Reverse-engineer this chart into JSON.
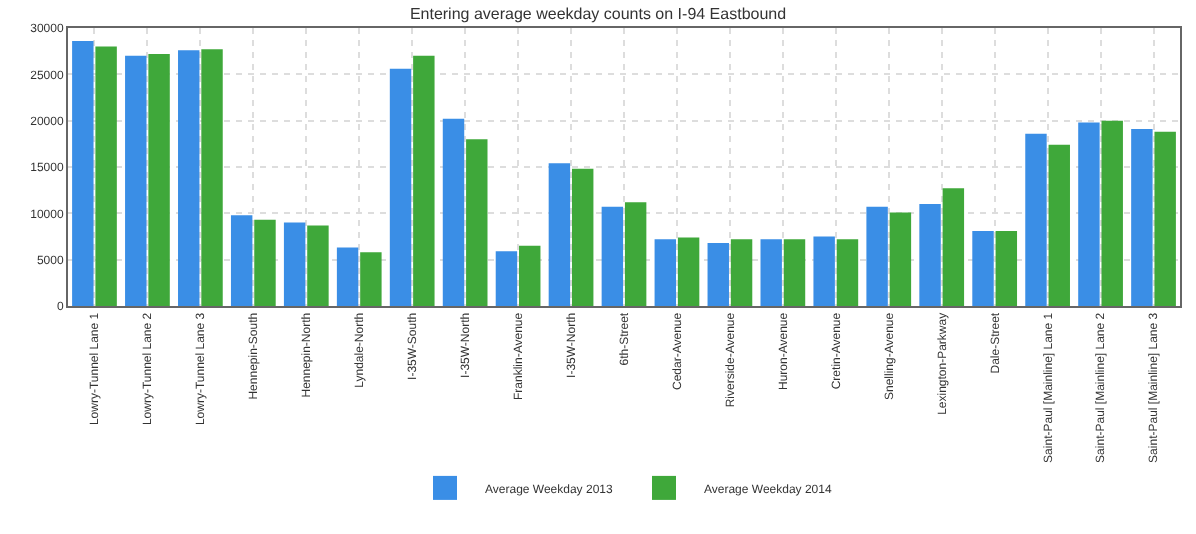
{
  "chart_data": {
    "type": "bar",
    "title": "Entering average weekday counts on I-94 Eastbound",
    "categories": [
      "Lowry-Tunnel Lane 1",
      "Lowry-Tunnel Lane 2",
      "Lowry-Tunnel Lane 3",
      "Hennepin-South",
      "Hennepin-North",
      "Lyndale-North",
      "I-35W-South",
      "I-35W-North",
      "Franklin-Avenue",
      "I-35W-North",
      "6th-Street",
      "Cedar-Avenue",
      "Riverside-Avenue",
      "Huron-Avenue",
      "Cretin-Avenue",
      "Snelling-Avenue",
      "Lexington-Parkway",
      "Dale-Street",
      "Saint-Paul [Mainline] Lane 1",
      "Saint-Paul [Mainline] Lane 2",
      "Saint-Paul [Mainline] Lane 3"
    ],
    "series": [
      {
        "name": "Average Weekday 2013",
        "color": "#3a8ee6",
        "values": [
          28600,
          27000,
          27600,
          9800,
          9000,
          6300,
          25600,
          20200,
          5900,
          15400,
          10700,
          7200,
          6800,
          7200,
          7500,
          10700,
          11000,
          8100,
          18600,
          19800,
          19100
        ]
      },
      {
        "name": "Average Weekday 2014",
        "color": "#3fa83a",
        "values": [
          28000,
          27200,
          27700,
          9300,
          8700,
          5800,
          27000,
          18000,
          6500,
          14800,
          11200,
          7400,
          7200,
          7200,
          7200,
          10100,
          12700,
          8100,
          17400,
          20000,
          18800
        ]
      }
    ],
    "ylim": [
      0,
      30000
    ],
    "yticks": [
      0,
      5000,
      10000,
      15000,
      20000,
      25000,
      30000
    ],
    "grid": true,
    "legend": "bottom"
  }
}
